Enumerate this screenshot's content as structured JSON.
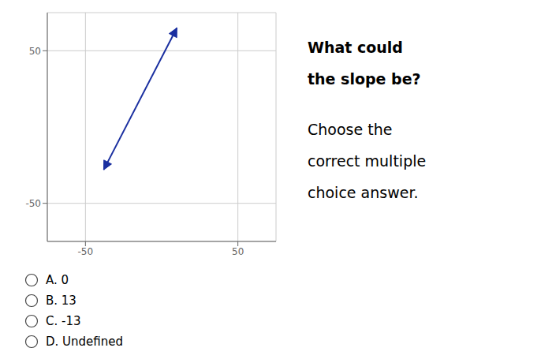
{
  "chart_data": {
    "type": "line",
    "title": [
      "What could",
      "the slope be?"
    ],
    "subtitle": [
      "Choose the",
      "correct multiple",
      "choice answer."
    ],
    "annotations": [
      "A. 0",
      "B. 13",
      "C. -13",
      "D. Undefined"
    ],
    "x": [
      -38,
      10
    ],
    "values": [
      -28,
      65
    ],
    "color": "#1a2fa0",
    "marker": "arrow",
    "xlim": [
      -75,
      75
    ],
    "ylim": [
      -75,
      75
    ],
    "xticks": [
      -50,
      50
    ],
    "yticks": [
      -50,
      50
    ],
    "grid": true
  }
}
